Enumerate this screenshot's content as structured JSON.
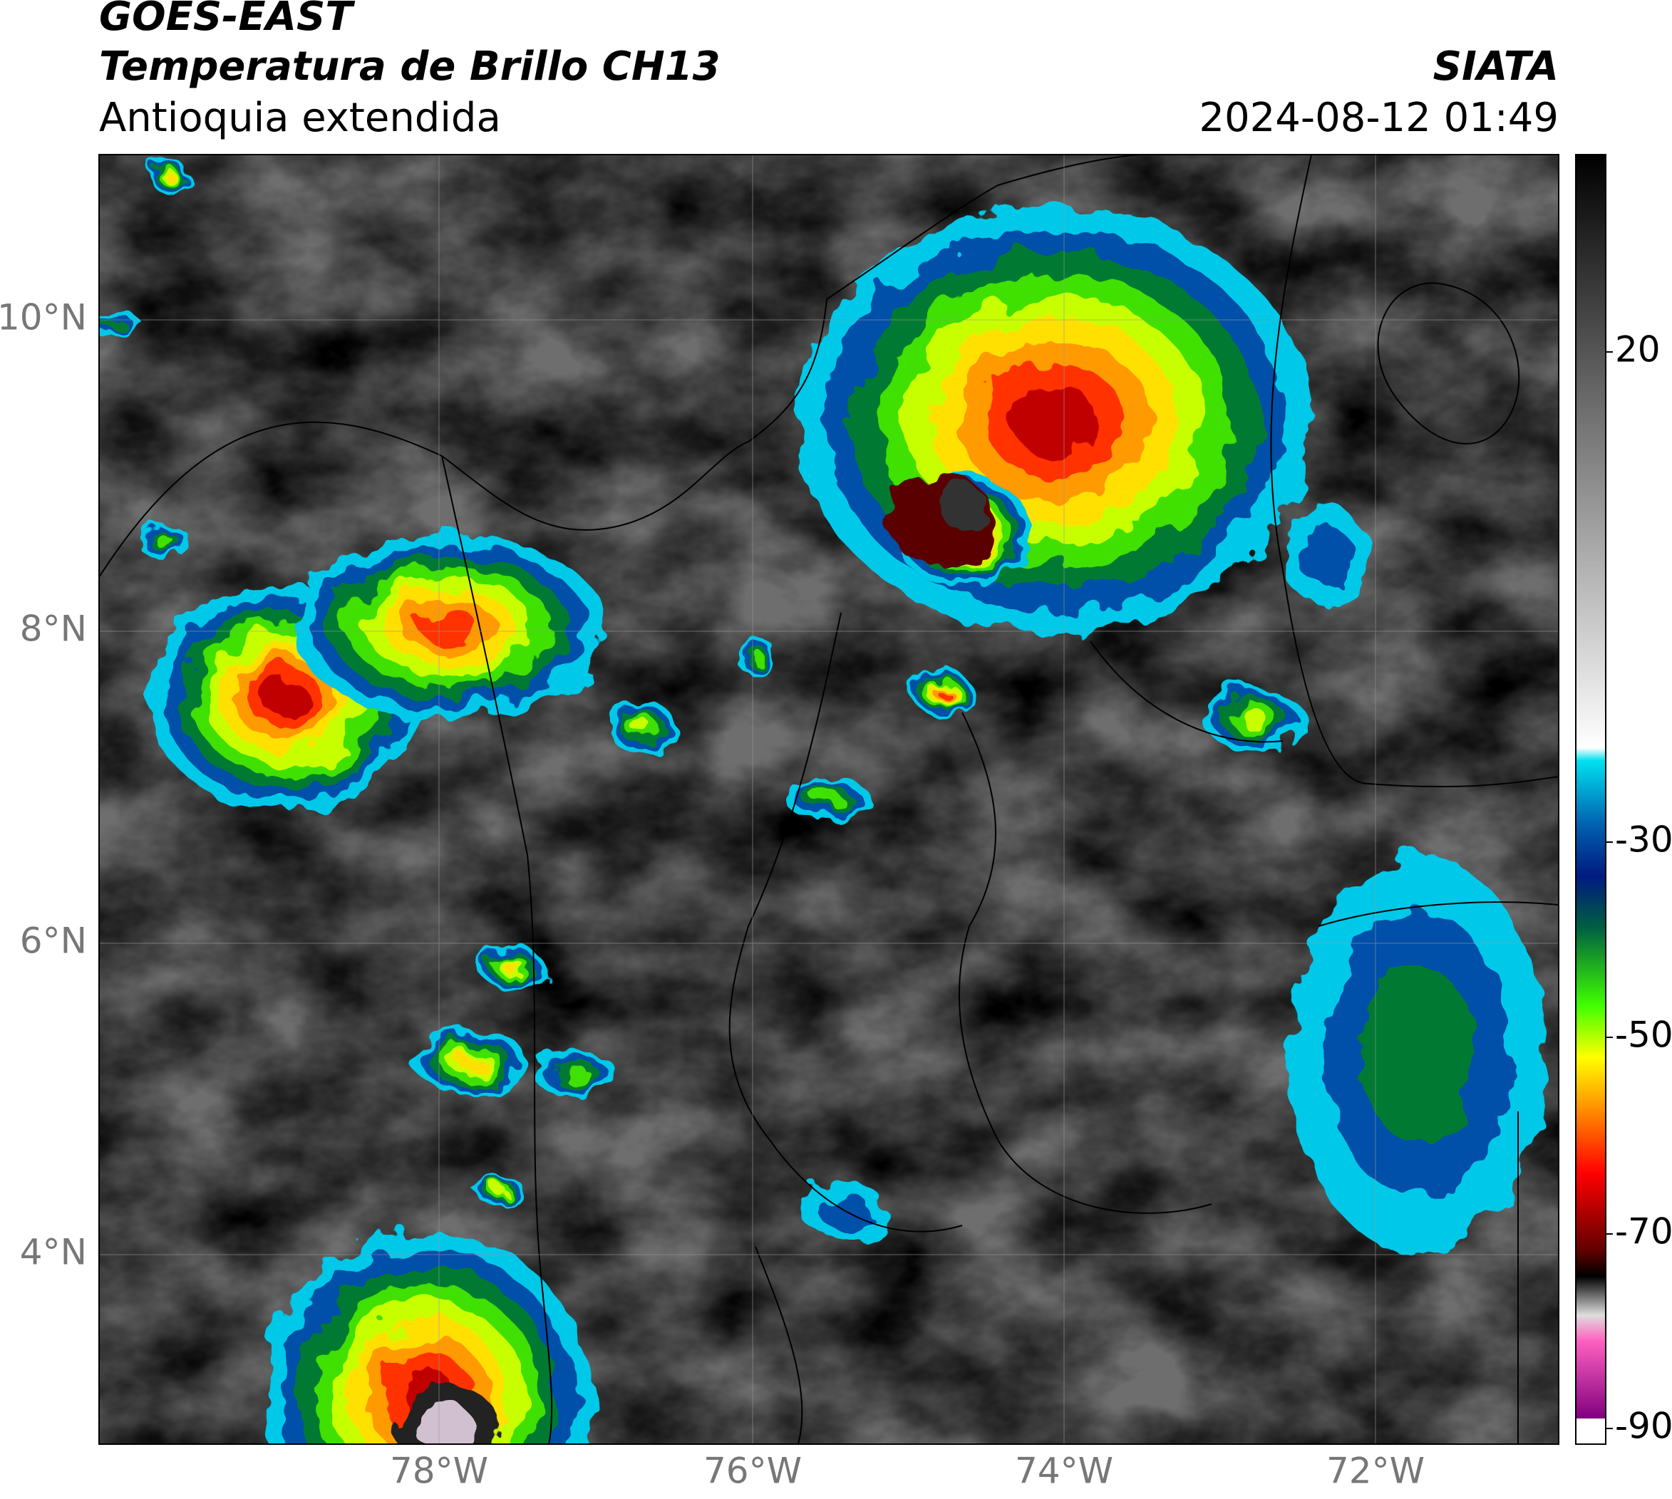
{
  "header": {
    "satellite": "GOES-EAST",
    "product": "Temperatura de Brillo CH13",
    "region": "Antioquia extendida",
    "source": "SIATA",
    "datetime": "2024-08-12 01:49"
  },
  "map": {
    "lat_labels": [
      "10°N",
      "8°N",
      "6°N",
      "4°N"
    ],
    "lon_labels": [
      "78°W",
      "76°W",
      "74°W",
      "72°W"
    ]
  },
  "colorbar": {
    "ticks": [
      20,
      -30,
      -50,
      -70,
      -90
    ]
  }
}
